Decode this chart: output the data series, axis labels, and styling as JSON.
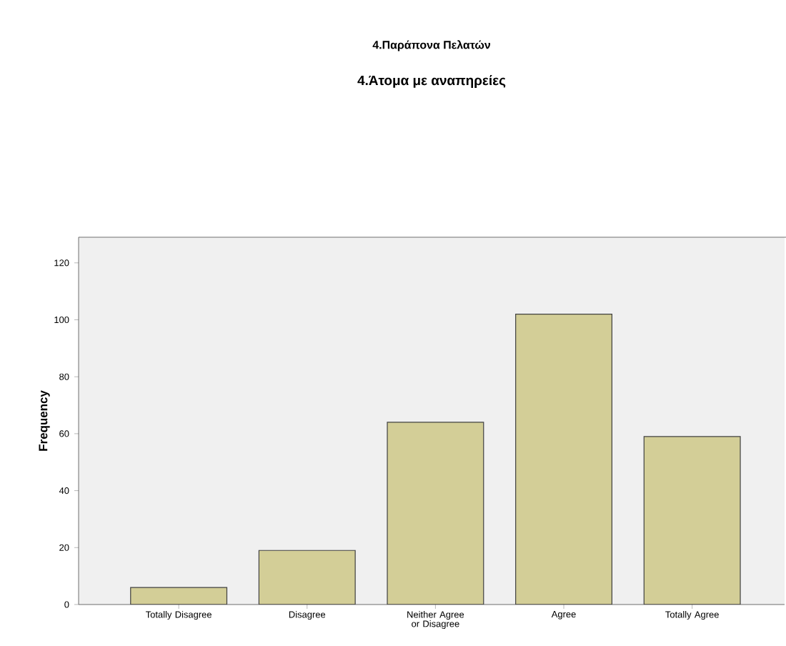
{
  "chart_data": {
    "type": "bar",
    "title": "4.Παράπονα Πελατών",
    "subtitle": "4.Άτομα με αναπηρείες",
    "ylabel": "Frequency",
    "categories": [
      "Totally Disagree",
      "Disagree",
      "Neither Agree or Disagree",
      "Agree",
      "Totally Agree"
    ],
    "values": [
      6,
      19,
      64,
      102,
      59
    ],
    "color": "#d3ce97",
    "ylim": [
      0,
      129
    ],
    "yticks": [
      0,
      20,
      40,
      60,
      80,
      100,
      120
    ]
  }
}
